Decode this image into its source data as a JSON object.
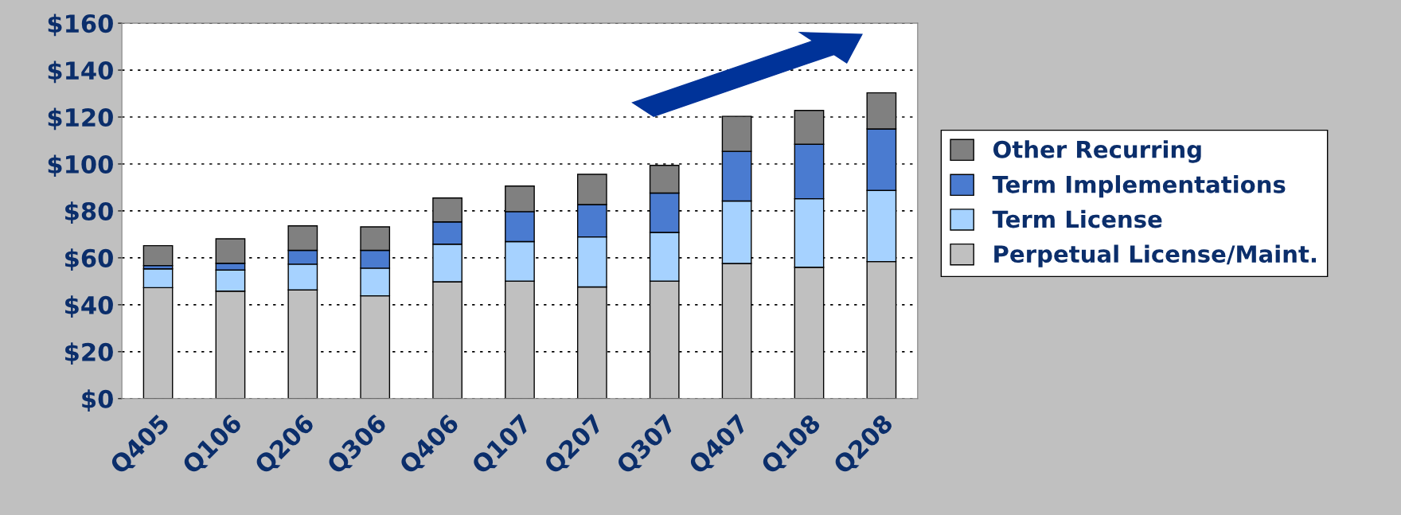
{
  "chart_data": {
    "type": "bar",
    "stacked": true,
    "categories": [
      "Q405",
      "Q106",
      "Q206",
      "Q306",
      "Q406",
      "Q107",
      "Q207",
      "Q307",
      "Q407",
      "Q108",
      "Q208"
    ],
    "series": [
      {
        "name": "Perpetual License/Maint.",
        "color": "#c0c0c0",
        "values": [
          47.3,
          45.8,
          46.3,
          43.8,
          49.8,
          50.1,
          47.6,
          50.1,
          57.6,
          56.0,
          58.4
        ]
      },
      {
        "name": "Term License",
        "color": "#a6d2ff",
        "values": [
          8.0,
          9.0,
          11.0,
          11.8,
          16.0,
          16.8,
          21.3,
          20.7,
          26.6,
          29.2,
          30.3
        ]
      },
      {
        "name": "Term Implementations",
        "color": "#4a7bd0",
        "values": [
          1.4,
          2.9,
          5.9,
          7.6,
          9.5,
          12.8,
          13.8,
          16.8,
          21.2,
          23.2,
          26.2
        ]
      },
      {
        "name": "Other Recurring",
        "color": "#808080",
        "values": [
          8.5,
          10.4,
          10.4,
          10.0,
          10.2,
          10.9,
          12.9,
          11.8,
          14.9,
          14.4,
          15.4
        ]
      }
    ],
    "ylim": [
      0,
      160
    ],
    "yticks": [
      {
        "value": 0,
        "label": "$0"
      },
      {
        "value": 20,
        "label": "$20"
      },
      {
        "value": 40,
        "label": "$40"
      },
      {
        "value": 60,
        "label": "$60"
      },
      {
        "value": 80,
        "label": "$80"
      },
      {
        "value": 100,
        "label": "$100"
      },
      {
        "value": 120,
        "label": "$120"
      },
      {
        "value": 140,
        "label": "$140"
      },
      {
        "value": 160,
        "label": "$160"
      }
    ],
    "grid": "y",
    "legend": "right"
  }
}
